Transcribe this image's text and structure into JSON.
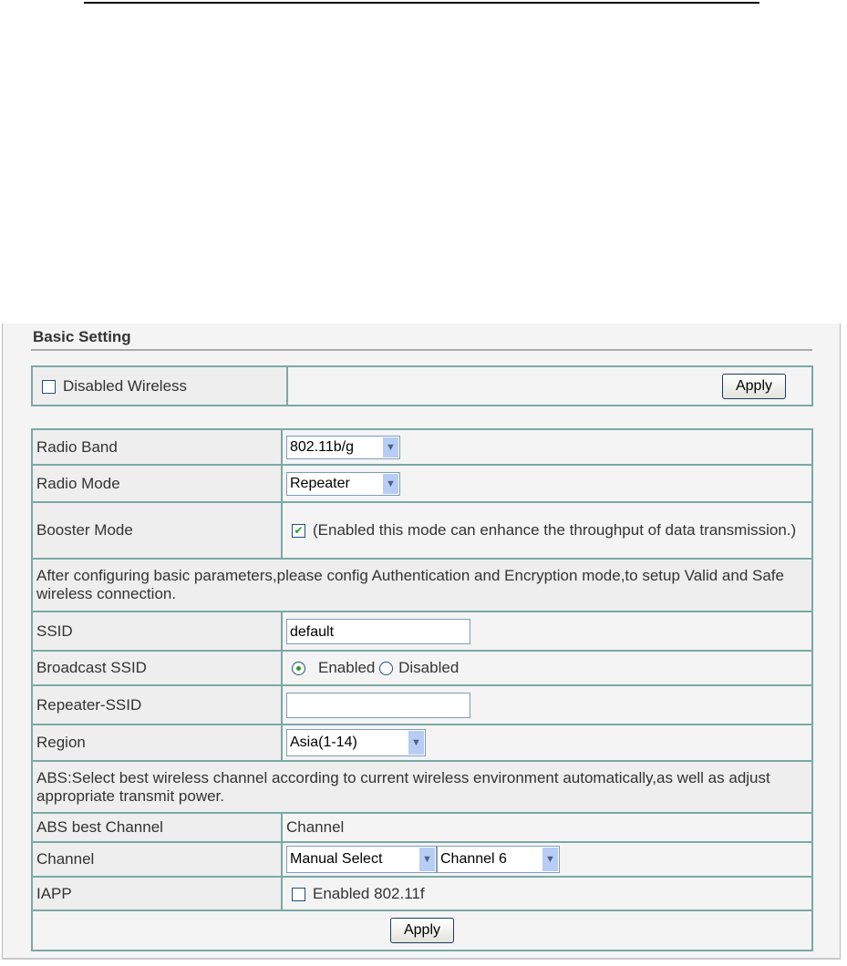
{
  "heading": "Basic Setting",
  "disabled_wireless": {
    "label": "Disabled Wireless",
    "checked": false,
    "apply": "Apply"
  },
  "rows": {
    "radio_band": {
      "label": "Radio Band",
      "value": "802.11b/g"
    },
    "radio_mode": {
      "label": "Radio Mode",
      "value": "Repeater"
    },
    "booster": {
      "label": "Booster Mode",
      "checked": true,
      "text": "(Enabled this mode can enhance the throughput of data transmission.)"
    },
    "info1": "After configuring basic parameters,please config Authentication and Encryption mode,to setup Valid and Safe wireless connection.",
    "ssid": {
      "label": "SSID",
      "value": "default"
    },
    "broadcast": {
      "label": "Broadcast SSID",
      "enabled": "Enabled",
      "disabled": "Disabled",
      "selected": "Enabled"
    },
    "repeater_ssid": {
      "label": "Repeater-SSID",
      "value": ""
    },
    "region": {
      "label": "Region",
      "value": "Asia(1-14)"
    },
    "info2": "ABS:Select best wireless channel according to current wireless environment automatically,as well as adjust appropriate transmit power.",
    "abs": {
      "label": "ABS best Channel",
      "value": "Channel"
    },
    "channel": {
      "label": "Channel",
      "mode": "Manual Select",
      "value": "Channel 6"
    },
    "iapp": {
      "label": "IAPP",
      "text": "Enabled 802.11f",
      "checked": false
    },
    "apply": "Apply"
  }
}
